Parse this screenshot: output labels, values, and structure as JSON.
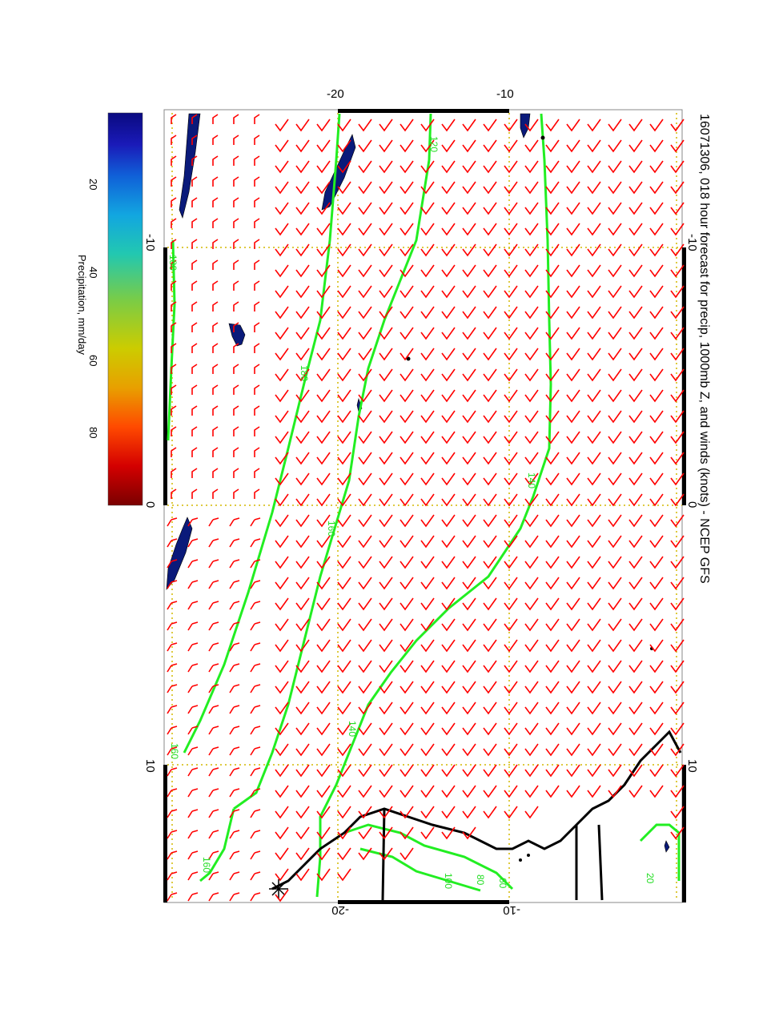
{
  "title": "16071306, 018 hour forecast for precip, 1000mb Z, and winds (knots) - NCEP GFS",
  "longitude_ticks": [
    "-10",
    "0",
    "10"
  ],
  "latitude_ticks": [
    "-20",
    "-10"
  ],
  "colorbar": {
    "label": "Precipitation, mm/day",
    "ticks": [
      "20",
      "40",
      "60",
      "80"
    ],
    "colors": [
      "#7a0000",
      "#d40000",
      "#ff4a00",
      "#e8a000",
      "#cccc00",
      "#7ccc44",
      "#22c8b0",
      "#12a6e0",
      "#1060d8",
      "#1a1ab8",
      "#0a0a80"
    ]
  },
  "contour_labels": [
    "180",
    "180",
    "160",
    "160",
    "160",
    "140",
    "140",
    "120",
    "100",
    "80",
    "60",
    "20"
  ],
  "colors": {
    "wind_barb": "#ff0000",
    "contour": "#22ee22",
    "grid": "#d4b800",
    "coastline": "#000000",
    "precip": "#0a1a7a"
  }
}
